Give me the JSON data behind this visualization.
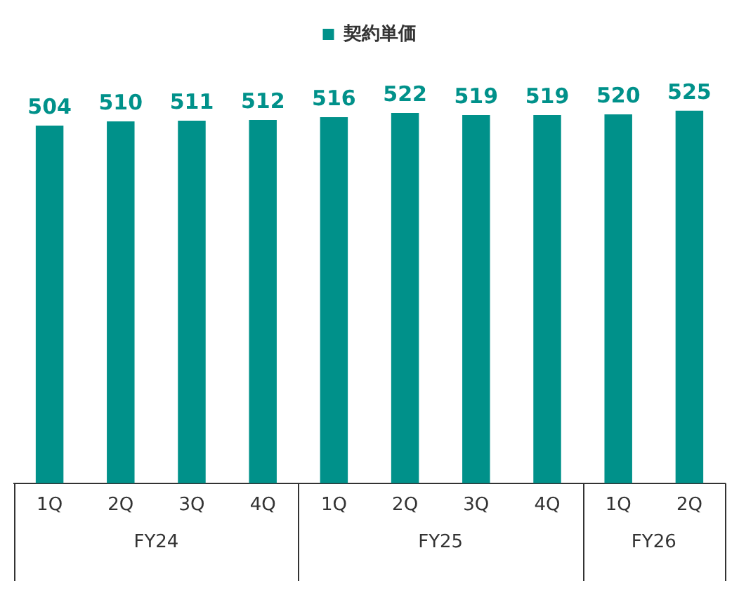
{
  "chart_data": {
    "type": "bar",
    "categories": [
      "1Q",
      "2Q",
      "3Q",
      "4Q",
      "1Q",
      "2Q",
      "3Q",
      "4Q",
      "1Q",
      "2Q"
    ],
    "series": [
      {
        "name": "契約単価",
        "color": "#00918a",
        "values": [
          504,
          510,
          511,
          512,
          516,
          522,
          519,
          519,
          520,
          525
        ]
      }
    ],
    "data_labels": true,
    "legend": "top",
    "grid": false,
    "annotations": [
      "FY24",
      "FY25",
      "FY26"
    ]
  }
}
